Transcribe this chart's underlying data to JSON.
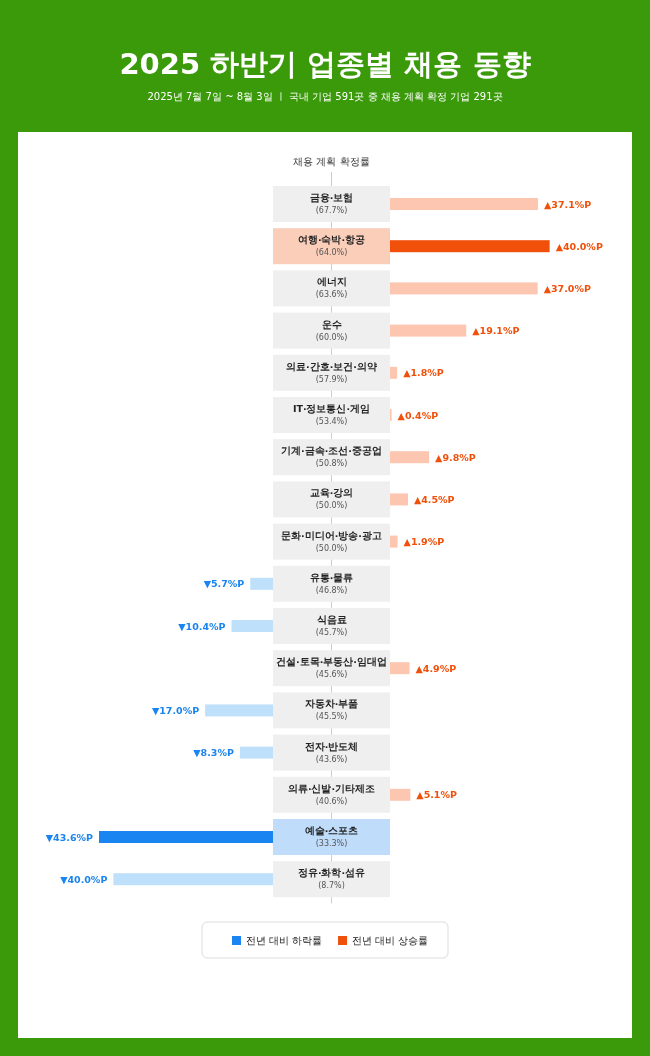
{
  "chart_data": [
    {
      "type": "bar",
      "orientation": "horizontal",
      "title": "2025 하반기 업종별 채용 동향",
      "subtitle": "2025년 7월 7일 ~ 8월 3일  ㅣ  국내 기업 591곳 중 채용 계획 확정 기업 291곳",
      "ylabel": "채용 계획 확정률",
      "legend": "bottom",
      "categories": [
        null,
        null,
        null,
        null,
        null,
        null,
        null,
        null,
        null,
        "유통·물류\n(46.8%)",
        "식음료\n(45.7%)",
        null,
        "자동차·부품\n(45.5%)",
        "전자·반도체\n(43.6%)",
        null,
        "예술·스포츠\n(33.3%)",
        "정유·화학·섬유\n(8.7%)"
      ],
      "series": [
        {
          "name": "전년 대비 하락률",
          "color": "#1a84f0",
          "colors": [
            null,
            null,
            null,
            null,
            null,
            null,
            null,
            null,
            null,
            "#bfe0fb",
            "#bfe0fb",
            null,
            "#bfe0fb",
            "#bfe0fb",
            null,
            "#1a84f0",
            "#bfe0fb"
          ],
          "values": [
            null,
            null,
            null,
            null,
            null,
            null,
            null,
            null,
            null,
            5.7,
            10.4,
            null,
            17.0,
            8.3,
            null,
            43.6,
            40.0
          ],
          "value_labels": [
            null,
            null,
            null,
            null,
            null,
            null,
            null,
            null,
            null,
            "▼5.7%P",
            "▼10.4%P",
            null,
            "▼17.0%P",
            "▼8.3%P",
            null,
            "▼43.6%P",
            "▼40.0%P"
          ]
        }
      ]
    },
    {
      "type": "bar",
      "orientation": "horizontal",
      "legend": "bottom",
      "categories": [
        "금융·보험\n(67.7%)",
        "여행·숙박·항공\n(64.0%)",
        "에너지\n(63.6%)",
        "운수\n(60.0%)",
        "의료·간호·보건·의약\n(57.9%)",
        "IT·정보통신·게임\n(53.4%)",
        "기계·금속·조선·중공업\n(50.8%)",
        "교육·강의\n(50.0%)",
        "문화·미디어·방송·광고\n(50.0%)",
        null,
        null,
        "건설·토목·부동산·임대업\n(45.6%)",
        null,
        null,
        "의류·신발·기타제조\n(40.6%)",
        null,
        null
      ],
      "series": [
        {
          "name": "전년 대비 상승률",
          "color": "#f0500a",
          "colors": [
            "#fdc6b0",
            "#f0500a",
            "#fdc6b0",
            "#fdc6b0",
            "#fdc6b0",
            "#fdc6b0",
            "#fdc6b0",
            "#fdc6b0",
            "#fdc6b0",
            null,
            null,
            "#fdc6b0",
            null,
            null,
            "#fdc6b0",
            null,
            null
          ],
          "values": [
            37.1,
            40.0,
            37.0,
            19.1,
            1.8,
            0.4,
            9.8,
            4.5,
            1.9,
            null,
            null,
            4.9,
            null,
            null,
            5.1,
            null,
            null
          ],
          "value_labels": [
            "▲37.1%P",
            "▲40.0%P",
            "▲37.0%P",
            "▲19.1%P",
            "▲1.8%P",
            "▲0.4%P",
            "▲9.8%P",
            "▲4.5%P",
            "▲1.9%P",
            null,
            null,
            "▲4.9%P",
            null,
            null,
            "▲5.1%P",
            null,
            null
          ]
        }
      ]
    }
  ]
}
